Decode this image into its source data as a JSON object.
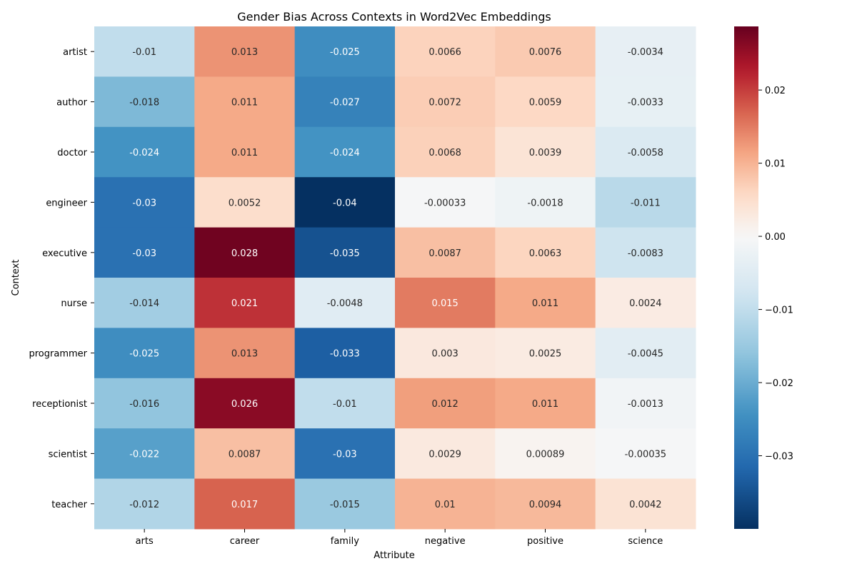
{
  "chart_data": {
    "type": "heatmap",
    "title": "Gender Bias Across Contexts in Word2Vec Embeddings",
    "xlabel": "Attribute",
    "ylabel": "Context",
    "x_categories": [
      "arts",
      "career",
      "family",
      "negative",
      "positive",
      "science"
    ],
    "y_categories": [
      "artist",
      "author",
      "doctor",
      "engineer",
      "executive",
      "nurse",
      "programmer",
      "receptionist",
      "scientist",
      "teacher"
    ],
    "values": [
      [
        -0.01,
        0.013,
        -0.025,
        0.0066,
        0.0076,
        -0.0034
      ],
      [
        -0.018,
        0.011,
        -0.027,
        0.0072,
        0.0059,
        -0.0033
      ],
      [
        -0.024,
        0.011,
        -0.024,
        0.0068,
        0.0039,
        -0.0058
      ],
      [
        -0.03,
        0.0052,
        -0.04,
        -0.00033,
        -0.0018,
        -0.011
      ],
      [
        -0.03,
        0.028,
        -0.035,
        0.0087,
        0.0063,
        -0.0083
      ],
      [
        -0.014,
        0.021,
        -0.0048,
        0.015,
        0.011,
        0.0024
      ],
      [
        -0.025,
        0.013,
        -0.033,
        0.003,
        0.0025,
        -0.0045
      ],
      [
        -0.016,
        0.026,
        -0.01,
        0.012,
        0.011,
        -0.0013
      ],
      [
        -0.022,
        0.0087,
        -0.03,
        0.0029,
        0.00089,
        -0.00035
      ],
      [
        -0.012,
        0.017,
        -0.015,
        0.01,
        0.0094,
        0.0042
      ]
    ],
    "cell_labels": [
      [
        "-0.01",
        "0.013",
        "-0.025",
        "0.0066",
        "0.0076",
        "-0.0034"
      ],
      [
        "-0.018",
        "0.011",
        "-0.027",
        "0.0072",
        "0.0059",
        "-0.0033"
      ],
      [
        "-0.024",
        "0.011",
        "-0.024",
        "0.0068",
        "0.0039",
        "-0.0058"
      ],
      [
        "-0.03",
        "0.0052",
        "-0.04",
        "-0.00033",
        "-0.0018",
        "-0.011"
      ],
      [
        "-0.03",
        "0.028",
        "-0.035",
        "0.0087",
        "0.0063",
        "-0.0083"
      ],
      [
        "-0.014",
        "0.021",
        "-0.0048",
        "0.015",
        "0.011",
        "0.0024"
      ],
      [
        "-0.025",
        "0.013",
        "-0.033",
        "0.003",
        "0.0025",
        "-0.0045"
      ],
      [
        "-0.016",
        "0.026",
        "-0.01",
        "0.012",
        "0.011",
        "-0.0013"
      ],
      [
        "-0.022",
        "0.0087",
        "-0.03",
        "0.0029",
        "0.00089",
        "-0.00035"
      ],
      [
        "-0.012",
        "0.017",
        "-0.015",
        "0.01",
        "0.0094",
        "0.0042"
      ]
    ],
    "colormap": "RdBu_r",
    "color_range": [
      -0.04,
      0.0287
    ],
    "colorbar_ticks": [
      0.02,
      0.01,
      0.0,
      -0.01,
      -0.02,
      -0.03
    ],
    "colorbar_tick_labels": [
      "0.02",
      "0.01",
      "0.00",
      "−0.01",
      "−0.02",
      "−0.03"
    ],
    "grid": false,
    "legend": "colorbar-right"
  }
}
